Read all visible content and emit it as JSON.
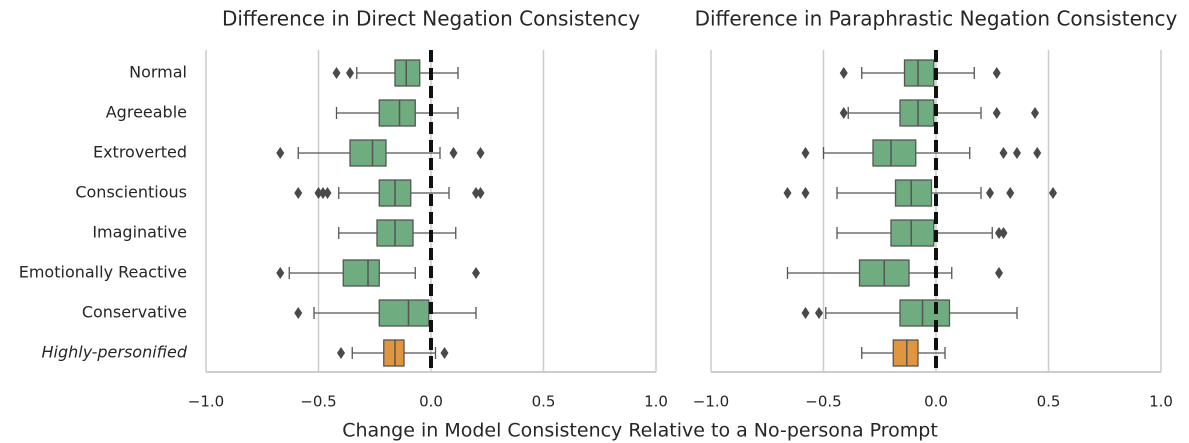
{
  "xlabel": "Change in Model Consistency Relative to a No-persona Prompt",
  "chart_data": [
    {
      "type": "box",
      "title": "Difference in Direct Negation Consistency",
      "categories": [
        "Normal",
        "Agreeable",
        "Extroverted",
        "Conscientious",
        "Imaginative",
        "Emotionally Reactive",
        "Conservative",
        "Highly-personified"
      ],
      "category_styles": [
        "normal",
        "normal",
        "normal",
        "normal",
        "normal",
        "normal",
        "normal",
        "italic"
      ],
      "colors": [
        "#6fac7f",
        "#6fac7f",
        "#6fac7f",
        "#6fac7f",
        "#6fac7f",
        "#6fac7f",
        "#6fac7f",
        "#e0963f"
      ],
      "boxes": [
        {
          "whislo": -0.33,
          "q1": -0.16,
          "med": -0.11,
          "q3": -0.05,
          "whishi": 0.12,
          "fliers": [
            -0.42,
            -0.36
          ]
        },
        {
          "whislo": -0.42,
          "q1": -0.23,
          "med": -0.14,
          "q3": -0.07,
          "whishi": 0.12,
          "fliers": []
        },
        {
          "whislo": -0.59,
          "q1": -0.36,
          "med": -0.26,
          "q3": -0.2,
          "whishi": 0.04,
          "fliers": [
            -0.67,
            0.1,
            0.22
          ]
        },
        {
          "whislo": -0.41,
          "q1": -0.23,
          "med": -0.16,
          "q3": -0.09,
          "whishi": 0.08,
          "fliers": [
            -0.59,
            -0.5,
            -0.48,
            -0.46,
            0.2,
            0.22
          ]
        },
        {
          "whislo": -0.41,
          "q1": -0.24,
          "med": -0.16,
          "q3": -0.08,
          "whishi": 0.11,
          "fliers": []
        },
        {
          "whislo": -0.63,
          "q1": -0.39,
          "med": -0.28,
          "q3": -0.23,
          "whishi": -0.07,
          "fliers": [
            -0.67,
            0.2
          ]
        },
        {
          "whislo": -0.52,
          "q1": -0.23,
          "med": -0.1,
          "q3": -0.01,
          "whishi": 0.2,
          "fliers": [
            -0.59
          ]
        },
        {
          "whislo": -0.35,
          "q1": -0.21,
          "med": -0.16,
          "q3": -0.12,
          "whishi": 0.02,
          "fliers": [
            -0.4,
            0.06
          ]
        }
      ],
      "xlim": [
        -1,
        1
      ],
      "xticks": [
        {
          "value": -1,
          "label": "−1.0"
        },
        {
          "value": -0.5,
          "label": "−0.5"
        },
        {
          "value": 0,
          "label": "0.0"
        },
        0.5,
        {
          "value": 1,
          "label": "1.0"
        }
      ],
      "reference_line": 0,
      "grid": true
    },
    {
      "type": "box",
      "title": "Difference in Paraphrastic Negation Consistency",
      "colors": [
        "#6fac7f",
        "#6fac7f",
        "#6fac7f",
        "#6fac7f",
        "#6fac7f",
        "#6fac7f",
        "#6fac7f",
        "#e0963f"
      ],
      "boxes": [
        {
          "whislo": -0.33,
          "q1": -0.14,
          "med": -0.08,
          "q3": -0.01,
          "whishi": 0.17,
          "fliers": [
            -0.41,
            0.27
          ]
        },
        {
          "whislo": -0.39,
          "q1": -0.16,
          "med": -0.08,
          "q3": -0.01,
          "whishi": 0.2,
          "fliers": [
            -0.41,
            0.27,
            0.44
          ]
        },
        {
          "whislo": -0.5,
          "q1": -0.28,
          "med": -0.2,
          "q3": -0.09,
          "whishi": 0.15,
          "fliers": [
            -0.58,
            0.3,
            0.36,
            0.45
          ]
        },
        {
          "whislo": -0.44,
          "q1": -0.18,
          "med": -0.11,
          "q3": -0.02,
          "whishi": 0.2,
          "fliers": [
            -0.66,
            -0.58,
            0.24,
            0.33,
            0.52
          ]
        },
        {
          "whislo": -0.44,
          "q1": -0.2,
          "med": -0.11,
          "q3": -0.01,
          "whishi": 0.25,
          "fliers": [
            0.28,
            0.3
          ]
        },
        {
          "whislo": -0.66,
          "q1": -0.34,
          "med": -0.23,
          "q3": -0.12,
          "whishi": 0.07,
          "fliers": [
            0.28
          ]
        },
        {
          "whislo": -0.49,
          "q1": -0.16,
          "med": -0.06,
          "q3": 0.06,
          "whishi": 0.36,
          "fliers": [
            -0.58,
            -0.52
          ]
        },
        {
          "whislo": -0.33,
          "q1": -0.19,
          "med": -0.13,
          "q3": -0.08,
          "whishi": 0.04,
          "fliers": []
        }
      ],
      "xlim": [
        -1,
        1
      ],
      "xticks": [
        {
          "value": -1,
          "label": "−1.0"
        },
        {
          "value": -0.5,
          "label": "−0.5"
        },
        {
          "value": 0,
          "label": "0.0"
        },
        0.5,
        {
          "value": 1,
          "label": "1.0"
        }
      ],
      "reference_line": 0,
      "grid": true
    }
  ]
}
